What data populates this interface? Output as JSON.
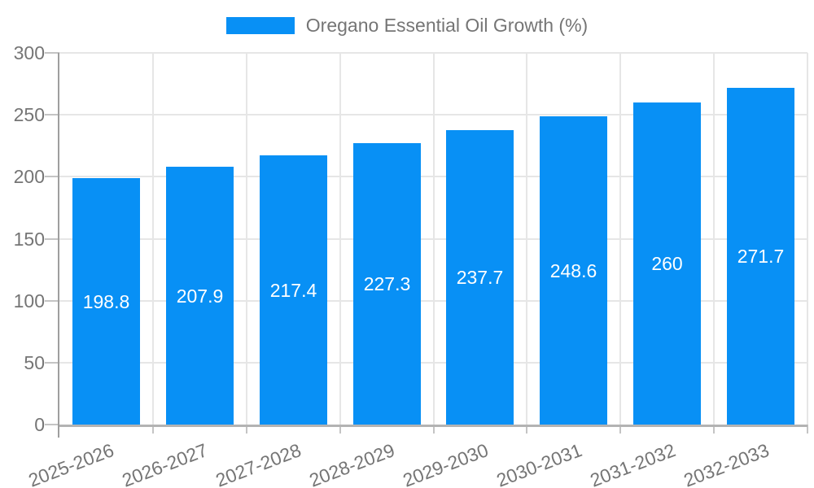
{
  "chart_data": {
    "type": "bar",
    "legend": "Oregano Essential Oil Growth (%)",
    "legend_position": "top-center",
    "categories": [
      "2025-2026",
      "2026-2027",
      "2027-2028",
      "2028-2029",
      "2029-2030",
      "2030-2031",
      "2031-2032",
      "2032-2033"
    ],
    "series": [
      {
        "name": "Oregano Essential Oil Growth (%)",
        "values": [
          198.8,
          207.9,
          217.4,
          227.3,
          237.7,
          248.6,
          260,
          271.7
        ]
      }
    ],
    "bar_value_labels": [
      "198.8",
      "207.9",
      "217.4",
      "227.3",
      "237.7",
      "248.6",
      "260",
      "271.7"
    ],
    "xlabel": "",
    "ylabel": "",
    "ylim": [
      0,
      300
    ],
    "ytick_step": 50,
    "yticks": [
      "0",
      "50",
      "100",
      "150",
      "200",
      "250",
      "300"
    ],
    "grid": "on",
    "x_label_rotation_deg": -21,
    "colors": {
      "bar": "#0890f5",
      "bar_label_text": "#ffffff",
      "axis_text": "#757575",
      "gridline": "#e6e6e6",
      "tick": "#c4c4c4",
      "axis_line_y": "#9e9e9e",
      "axis_line_x": "#b3b3b3",
      "background": "#ffffff"
    }
  }
}
